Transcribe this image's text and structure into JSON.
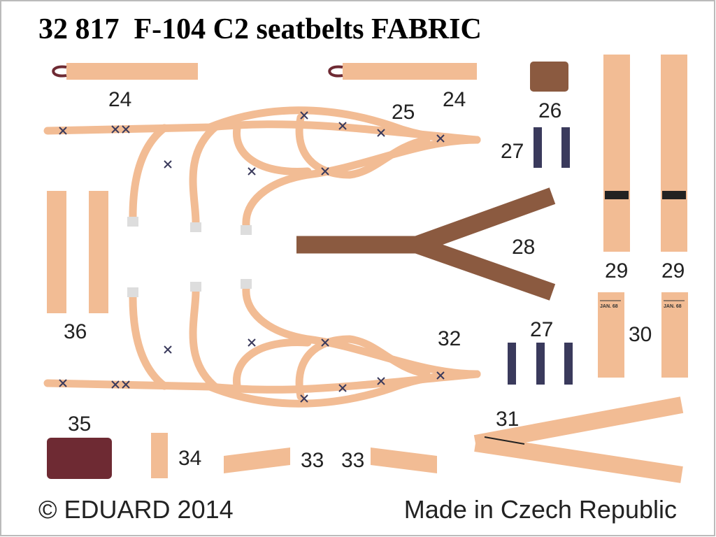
{
  "title": "32 817  F-104 C2 seatbelts FABRIC",
  "parts": [
    "24",
    "24",
    "25",
    "26",
    "27",
    "28",
    "29",
    "29",
    "36",
    "27",
    "32",
    "30",
    "31",
    "35",
    "34",
    "33",
    "33"
  ],
  "stamps": [
    "JAN. 68",
    "JAN. 68"
  ],
  "footer": {
    "copyright": "© EDUARD 2014",
    "origin": "Made in Czech Republic"
  }
}
